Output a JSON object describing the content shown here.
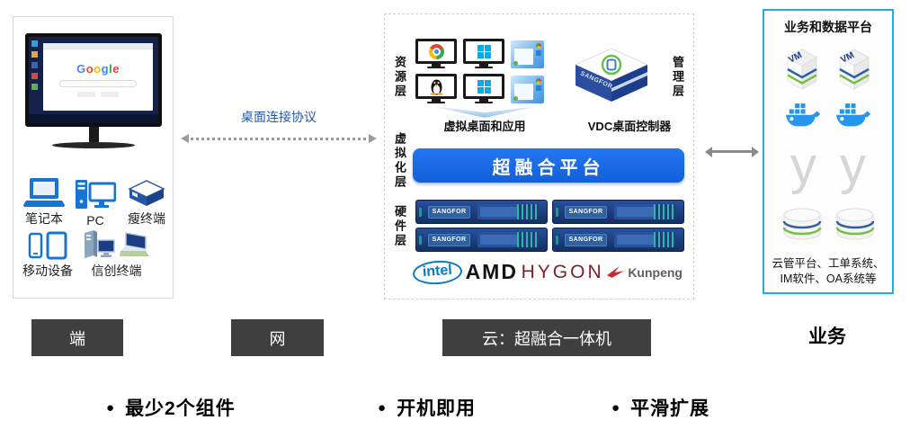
{
  "colors": {
    "platform_blue": "#1569E6",
    "device_blue": "#1674D4",
    "business_border_cyan": "#29ABE2",
    "label_box_gray": "#3F3F3F",
    "protocol_text_blue": "#2456A4",
    "docker_blue": "#2496ED",
    "intel_blue": "#0A7AC0",
    "hygon_maroon": "#7C1F2D",
    "kunpeng_red": "#D22630",
    "server_navy": "#1B3C7E",
    "windows_blue": "#00ADEF"
  },
  "endpoint_panel": {
    "monitor_brand": "Google",
    "devices_row1": [
      {
        "label": "笔记本"
      },
      {
        "label": "PC"
      },
      {
        "label": "瘦终端"
      }
    ],
    "devices_row2": [
      {
        "label": "移动设备"
      },
      {
        "label": "信创终端"
      }
    ]
  },
  "network": {
    "protocol_label": "桌面连接协议"
  },
  "cloud_panel": {
    "layers": {
      "resource": "资源层",
      "management": "管理层",
      "virtualization": "虚拟化层",
      "hardware": "硬件层"
    },
    "virtual_desktop_label": "虚拟桌面和应用",
    "vdc_controller_label": "VDC桌面控制器",
    "vdc_brand": "SANGFOR",
    "platform_label": "超融合平台",
    "server_brand": "SANGFOR",
    "vendors": [
      {
        "name": "intel"
      },
      {
        "name": "AMD"
      },
      {
        "name": "HYGON"
      },
      {
        "name": "Kunpeng"
      }
    ]
  },
  "business_panel": {
    "title": "业务和数据平台",
    "vm_label": "VM",
    "logo_letter": "y",
    "apps_line1": "云管平台、工单系统、",
    "apps_line2": "IM软件、OA系统等"
  },
  "bottom_labels": {
    "terminal": "端",
    "network": "网",
    "cloud": "云：超融合一体机",
    "business": "业务"
  },
  "bullets": [
    {
      "glyph": "●",
      "label": "最少2个组件"
    },
    {
      "glyph": "●",
      "label": "开机即用"
    },
    {
      "glyph": "●",
      "label": "平滑扩展"
    }
  ]
}
